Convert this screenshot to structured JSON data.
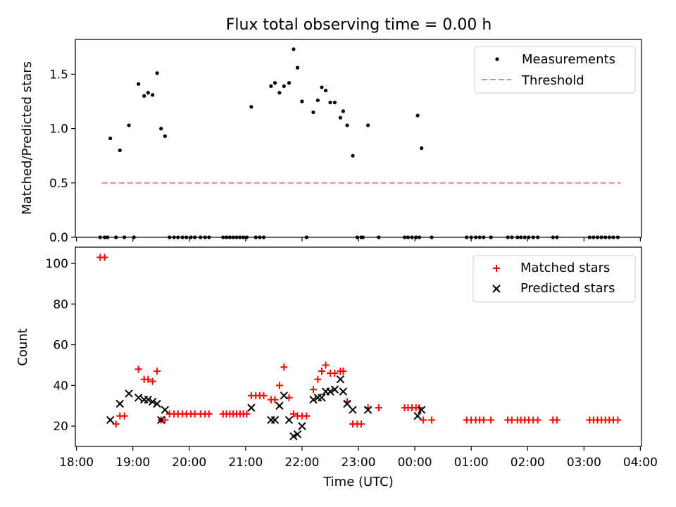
{
  "title": "Flux total observing time = 0.00 h",
  "chart_data": [
    {
      "type": "scatter",
      "ylabel": "Matched/Predicted stars",
      "ylim": [
        0,
        1.82
      ],
      "yticks": [
        0.0,
        0.5,
        1.0,
        1.5
      ],
      "ytick_labels": [
        "0.0",
        "0.5",
        "1.0",
        "1.5"
      ],
      "xlim": [
        -0.02,
        10.02
      ],
      "legend": "top-right",
      "legend_entries": [
        "Measurements",
        "Threshold"
      ],
      "threshold": {
        "name": "Threshold",
        "value": 0.5,
        "x_start": 0.45,
        "x_end": 9.65,
        "color": "#ff8080"
      },
      "measurements": {
        "name": "Measurements",
        "color": "#000000",
        "x": [
          0.6,
          0.77,
          0.93,
          1.1,
          1.2,
          1.27,
          1.35,
          1.43,
          1.5,
          1.57,
          3.1,
          3.45,
          3.52,
          3.6,
          3.68,
          3.77,
          3.85,
          3.92,
          4.0,
          4.2,
          4.28,
          4.35,
          4.42,
          4.5,
          4.58,
          4.68,
          4.73,
          4.8,
          4.9,
          4.98,
          5.17,
          6.05,
          6.12
        ],
        "y": [
          0.91,
          0.8,
          1.03,
          1.41,
          1.3,
          1.33,
          1.31,
          1.51,
          1.0,
          0.93,
          1.2,
          1.39,
          1.42,
          1.33,
          1.39,
          1.42,
          1.73,
          1.56,
          1.25,
          1.15,
          1.26,
          1.38,
          1.35,
          1.24,
          1.24,
          1.1,
          1.16,
          1.03,
          0.75,
          0.0,
          1.03,
          1.12,
          0.82
        ],
        "zero_x": [
          0.42,
          0.5,
          0.55,
          0.7,
          0.85,
          1.02,
          1.65,
          1.73,
          1.8,
          1.88,
          1.95,
          2.03,
          2.1,
          2.2,
          2.28,
          2.35,
          2.6,
          2.66,
          2.72,
          2.78,
          2.84,
          2.9,
          2.96,
          3.02,
          3.18,
          3.25,
          3.32,
          4.08,
          5.05,
          5.08,
          5.36,
          5.82,
          5.88,
          5.95,
          6.02,
          6.08,
          6.3,
          6.92,
          7.0,
          7.08,
          7.15,
          7.22,
          7.35,
          7.65,
          7.72,
          7.82,
          7.88,
          7.95,
          8.02,
          8.1,
          8.18,
          8.45,
          8.52,
          9.1,
          9.17,
          9.24,
          9.31,
          9.38,
          9.45,
          9.52,
          9.6
        ]
      }
    },
    {
      "type": "scatter",
      "xlabel": "Time (UTC)",
      "ylabel": "Count",
      "ylim": [
        10,
        108
      ],
      "yticks": [
        20,
        40,
        60,
        80,
        100
      ],
      "ytick_labels": [
        "20",
        "40",
        "60",
        "80",
        "100"
      ],
      "xlim": [
        -0.02,
        10.02
      ],
      "xticks": [
        0,
        1,
        2,
        3,
        4,
        5,
        6,
        7,
        8,
        9,
        10
      ],
      "xtick_labels": [
        "18:00",
        "19:00",
        "20:00",
        "21:00",
        "22:00",
        "23:00",
        "00:00",
        "01:00",
        "02:00",
        "03:00",
        "04:00"
      ],
      "legend": "top-right",
      "legend_entries": [
        "Matched stars",
        "Predicted stars"
      ],
      "series": [
        {
          "name": "Matched stars",
          "marker": "+",
          "color": "#ff0000",
          "x": [
            0.42,
            0.5,
            0.7,
            0.77,
            0.85,
            1.1,
            1.2,
            1.27,
            1.35,
            1.43,
            1.5,
            1.57,
            1.65,
            1.73,
            1.8,
            1.88,
            1.95,
            2.03,
            2.1,
            2.2,
            2.28,
            2.35,
            2.6,
            2.66,
            2.72,
            2.78,
            2.84,
            2.9,
            2.96,
            3.02,
            3.1,
            3.18,
            3.25,
            3.32,
            3.45,
            3.52,
            3.6,
            3.68,
            3.77,
            3.85,
            3.92,
            4.0,
            4.08,
            4.2,
            4.28,
            4.35,
            4.42,
            4.5,
            4.58,
            4.68,
            4.73,
            4.8,
            4.9,
            4.98,
            5.05,
            5.17,
            5.36,
            5.82,
            5.88,
            5.95,
            6.02,
            6.08,
            6.15,
            6.3,
            6.92,
            7.0,
            7.08,
            7.15,
            7.22,
            7.35,
            7.65,
            7.72,
            7.82,
            7.88,
            7.95,
            8.02,
            8.1,
            8.18,
            8.45,
            8.52,
            9.1,
            9.17,
            9.24,
            9.31,
            9.38,
            9.45,
            9.52,
            9.6
          ],
          "y": [
            103,
            103,
            21,
            25,
            25,
            48,
            43,
            43,
            42,
            47,
            23,
            23,
            26,
            26,
            26,
            26,
            26,
            26,
            26,
            26,
            26,
            26,
            26,
            26,
            26,
            26,
            26,
            26,
            26,
            26,
            35,
            35,
            35,
            35,
            33,
            33,
            40,
            49,
            34,
            26,
            25,
            25,
            25,
            38,
            43,
            47,
            50,
            46,
            46,
            47,
            47,
            32,
            21,
            21,
            21,
            29,
            29,
            29,
            29,
            29,
            29,
            29,
            23,
            23,
            23,
            23,
            23,
            23,
            23,
            23,
            23,
            23,
            23,
            23,
            23,
            23,
            23,
            23,
            23,
            23,
            23,
            23,
            23,
            23,
            23,
            23,
            23,
            23
          ]
        },
        {
          "name": "Predicted stars",
          "marker": "x",
          "color": "#000000",
          "x": [
            0.6,
            0.77,
            0.93,
            1.1,
            1.2,
            1.27,
            1.35,
            1.43,
            1.5,
            1.57,
            3.1,
            3.45,
            3.52,
            3.6,
            3.68,
            3.77,
            3.85,
            3.92,
            4.0,
            4.2,
            4.28,
            4.35,
            4.42,
            4.5,
            4.58,
            4.68,
            4.73,
            4.8,
            4.9,
            5.17,
            6.05,
            6.12
          ],
          "y": [
            23,
            31,
            36,
            34,
            33,
            33,
            32,
            31,
            23,
            28,
            29,
            23,
            23,
            30,
            35,
            23,
            15,
            16,
            20,
            33,
            34,
            34,
            37,
            37,
            38,
            43,
            37,
            31,
            28,
            28,
            25,
            28
          ]
        }
      ]
    }
  ]
}
